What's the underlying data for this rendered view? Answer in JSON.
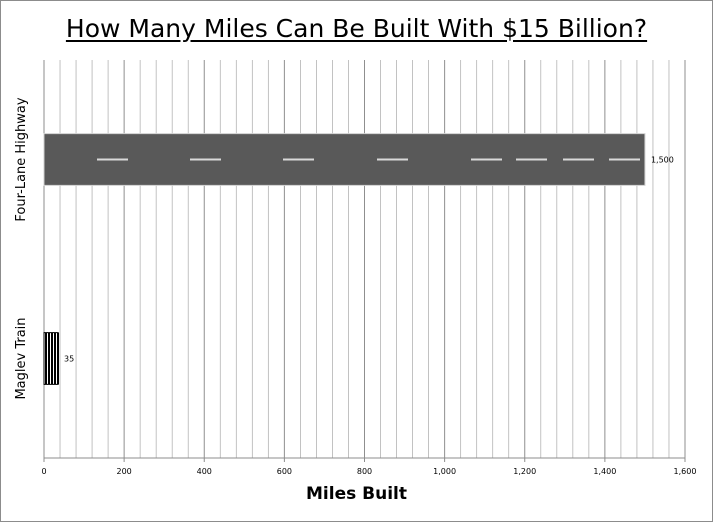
{
  "chart_data": {
    "type": "bar",
    "orientation": "horizontal",
    "title": "How Many Miles Can Be Built With $15 Billion?",
    "xlabel": "Miles Built",
    "categories": [
      "Four-Lane Highway",
      "Maglev Train"
    ],
    "values": [
      1500,
      35
    ],
    "data_labels": [
      "1,500",
      "35"
    ],
    "xlim": [
      0,
      1600
    ],
    "ticks": [
      0,
      200,
      400,
      600,
      800,
      1000,
      1200,
      1400,
      1600
    ],
    "tick_labels": [
      "0",
      "200",
      "400",
      "600",
      "800",
      "1,000",
      "1,200",
      "1,400",
      "1,600"
    ],
    "grid": true,
    "legend": "none",
    "colors": {
      "highway": "#595959",
      "lane_marks": "#d9d9d9",
      "maglev": "#000000",
      "gridline": "#a6a6a6"
    }
  }
}
